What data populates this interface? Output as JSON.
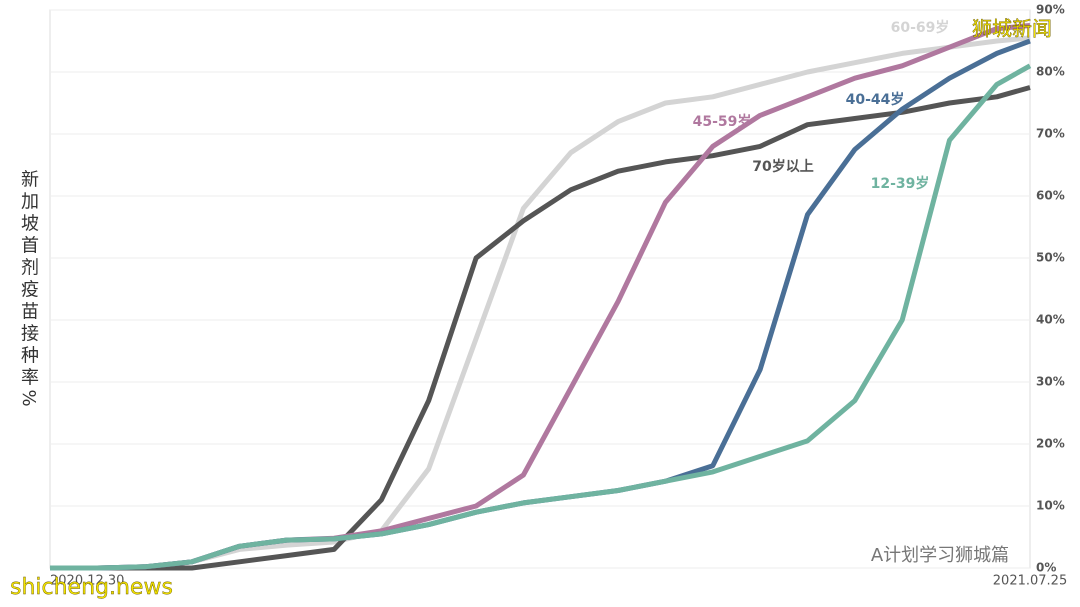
{
  "chart_data": {
    "type": "line",
    "y_label": "新加坡首剂疫苗接种率%",
    "x": [
      "2020.12.30",
      "2021.01.09",
      "2021.01.19",
      "2021.01.29",
      "2021.02.08",
      "2021.02.18",
      "2021.02.28",
      "2021.03.10",
      "2021.03.20",
      "2021.03.30",
      "2021.04.09",
      "2021.04.19",
      "2021.04.29",
      "2021.05.09",
      "2021.05.19",
      "2021.05.29",
      "2021.06.08",
      "2021.06.18",
      "2021.06.28",
      "2021.07.08",
      "2021.07.18",
      "2021.07.25"
    ],
    "xlim": [
      "2020.12.30",
      "2021.07.25"
    ],
    "xticks": [
      "2020.12.30",
      "2021.07.25"
    ],
    "ylim": [
      0,
      90
    ],
    "yticks": [
      {
        "value": 0,
        "label": "0%"
      },
      {
        "value": 10,
        "label": "10%"
      },
      {
        "value": 20,
        "label": "20%"
      },
      {
        "value": 30,
        "label": "30%"
      },
      {
        "value": 40,
        "label": "40%"
      },
      {
        "value": 50,
        "label": "50%"
      },
      {
        "value": 60,
        "label": "60%"
      },
      {
        "value": 70,
        "label": "70%"
      },
      {
        "value": 80,
        "label": "80%"
      },
      {
        "value": 90,
        "label": "90%"
      }
    ],
    "grid": true,
    "series": [
      {
        "name": "60-69岁",
        "color": "#d4d4d4",
        "values": [
          0,
          0,
          0,
          1,
          3,
          3.7,
          4.2,
          6,
          16,
          37,
          58,
          67,
          72,
          75,
          76,
          78,
          80,
          81.5,
          83,
          84,
          85,
          85.5
        ]
      },
      {
        "name": "70岁以上",
        "color": "#555555",
        "values": [
          0,
          0,
          0,
          0,
          1,
          2,
          3,
          11,
          27,
          50,
          56,
          61,
          64,
          65.5,
          66.5,
          68,
          71.5,
          72.5,
          73.5,
          75,
          76,
          77.5
        ]
      },
      {
        "name": "45-59岁",
        "color": "#b0789f",
        "values": [
          0,
          0,
          0.2,
          1,
          3.5,
          4.5,
          4.8,
          6,
          8,
          10,
          15,
          29,
          43,
          59,
          68,
          73,
          76,
          79,
          81,
          84,
          87,
          87.5
        ]
      },
      {
        "name": "40-44岁",
        "color": "#4a6f96",
        "values": [
          0,
          0,
          0.2,
          1,
          3.5,
          4.5,
          4.7,
          5.5,
          7,
          9,
          10.5,
          11.5,
          12.5,
          14,
          16.5,
          32,
          57,
          67.5,
          74,
          79,
          83,
          85
        ]
      },
      {
        "name": "12-39岁",
        "color": "#6fb3a0",
        "values": [
          0,
          0,
          0.2,
          1,
          3.5,
          4.5,
          4.7,
          5.5,
          7,
          9,
          10.5,
          11.5,
          12.5,
          14,
          15.5,
          18,
          20.5,
          27,
          40,
          69,
          78,
          81
        ]
      }
    ],
    "watermarks": [
      "狮城新闻",
      "A计划学习狮城篇",
      "shicheng.news"
    ]
  }
}
